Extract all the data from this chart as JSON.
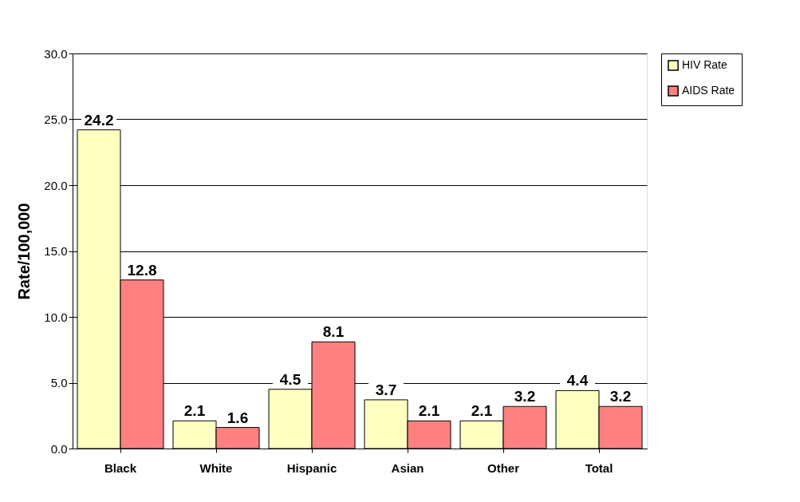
{
  "chart_data": {
    "type": "bar",
    "ylabel": "Rate/100,000",
    "categories": [
      "Black",
      "White",
      "Hispanic",
      "Asian",
      "Other",
      "Total"
    ],
    "series": [
      {
        "name": "HIV Rate",
        "color": "#ffffc0",
        "values": [
          24.2,
          2.1,
          4.5,
          3.7,
          2.1,
          4.4
        ]
      },
      {
        "name": "AIDS Rate",
        "color": "#ff8080",
        "values": [
          12.8,
          1.6,
          8.1,
          2.1,
          3.2,
          3.2
        ]
      }
    ],
    "ylim": [
      0,
      30
    ],
    "yticks": [
      {
        "value": 0,
        "label": "0.0"
      },
      {
        "value": 5,
        "label": "5.0"
      },
      {
        "value": 10,
        "label": "10.0"
      },
      {
        "value": 15,
        "label": "15.0"
      },
      {
        "value": 20,
        "label": "20.0"
      },
      {
        "value": 25,
        "label": "25.0"
      },
      {
        "value": 30,
        "label": "30.0"
      }
    ],
    "grid": "y",
    "legend": "right",
    "data_labels": true
  }
}
